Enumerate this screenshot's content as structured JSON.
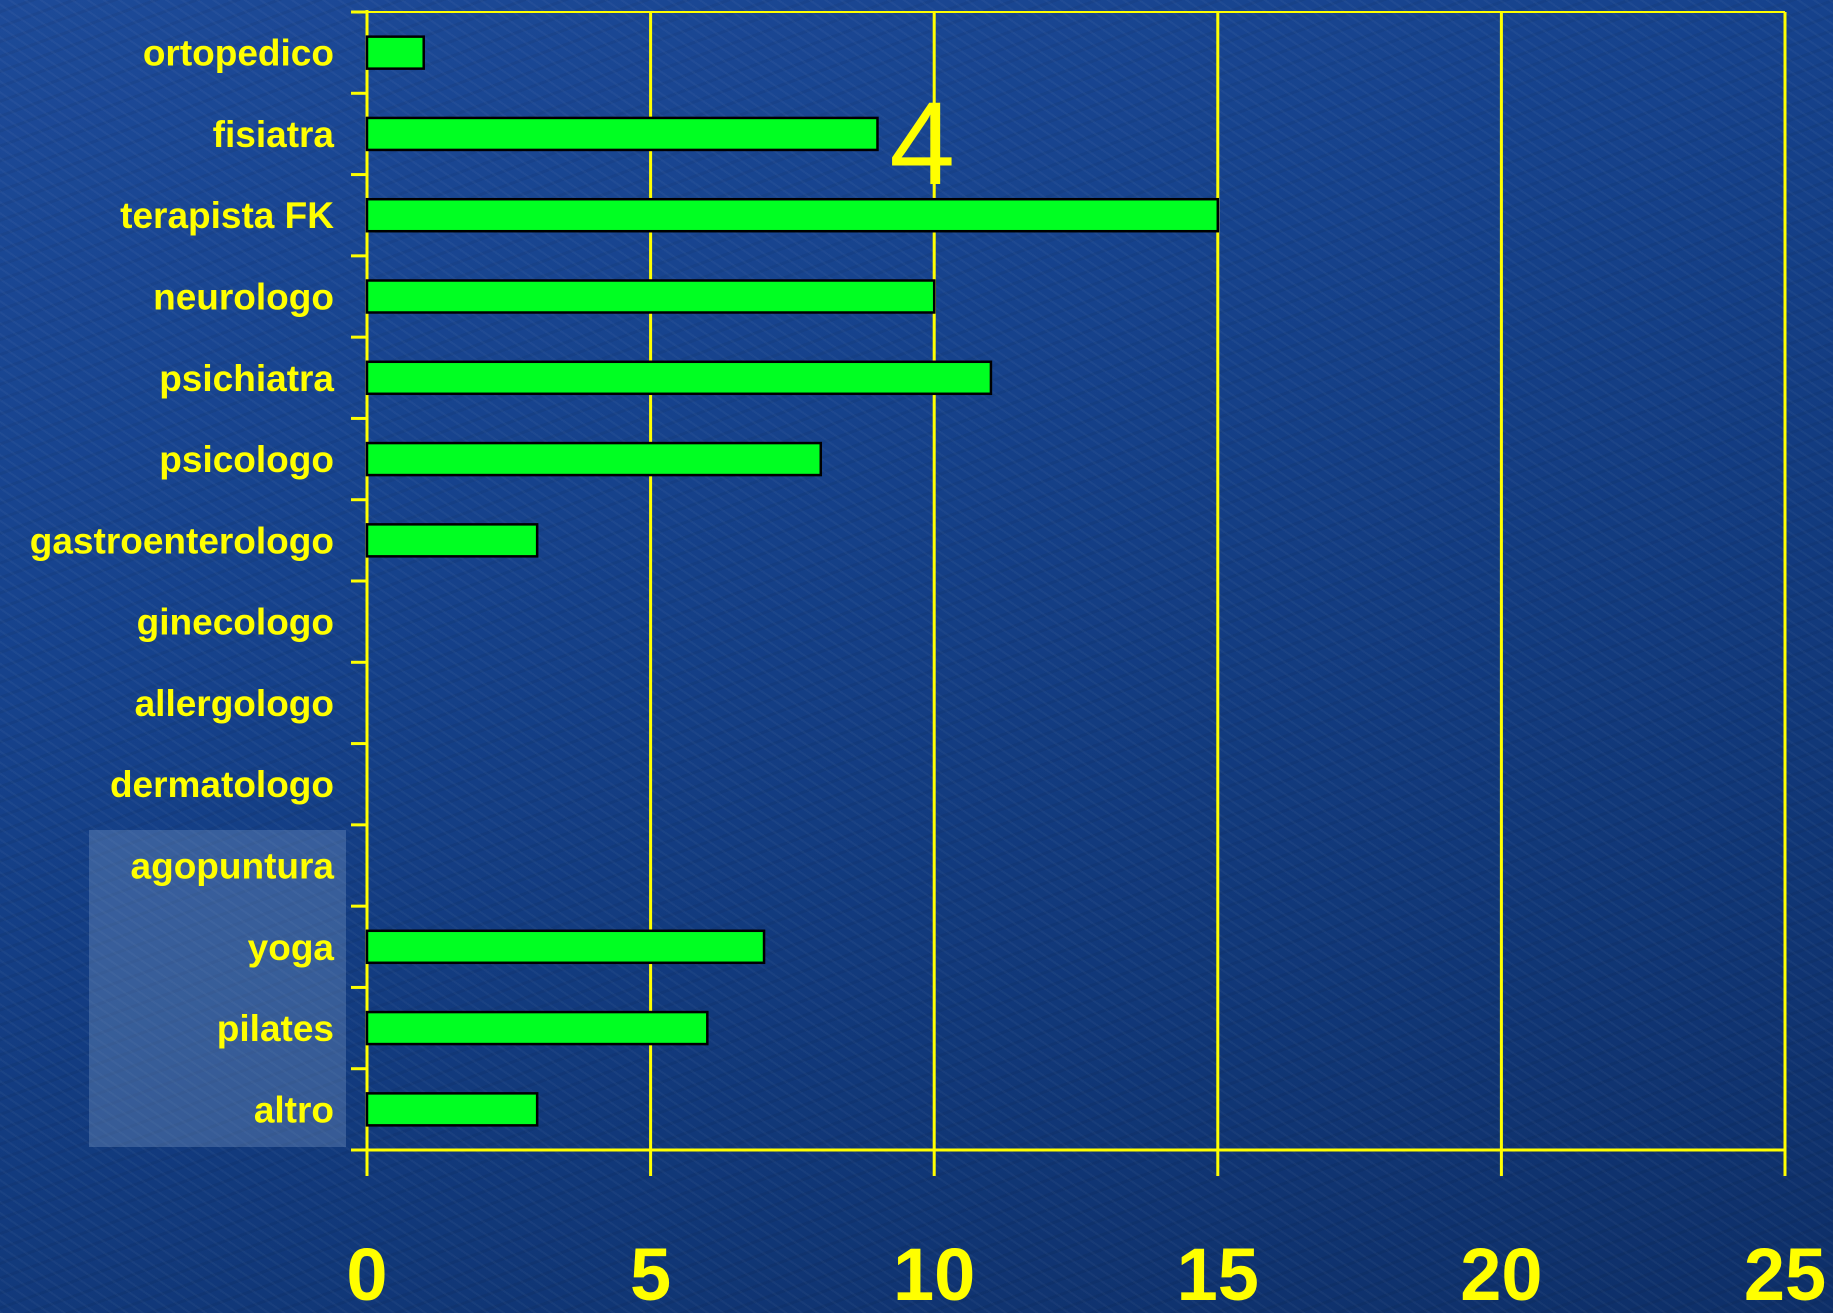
{
  "chart_data": {
    "type": "bar",
    "orientation": "horizontal",
    "categories": [
      "ortopedico",
      "fisiatra",
      "terapista FK",
      "neurologo",
      "psichiatra",
      "psicologo",
      "gastroenterologo",
      "ginecologo",
      "allergologo",
      "dermatologo",
      "agopuntura",
      "yoga",
      "pilates",
      "altro"
    ],
    "values": [
      1,
      9,
      15,
      10,
      11,
      8,
      3,
      0,
      0,
      0,
      0,
      7,
      6,
      3
    ],
    "xlim": [
      0,
      25
    ],
    "xticks": [
      0,
      5,
      10,
      15,
      20,
      25
    ],
    "grid": true,
    "legend": "none",
    "annotations": [
      {
        "text": "4",
        "x": 10,
        "category": "fisiatra"
      }
    ]
  },
  "colors": {
    "bar_fill": "#00ff22",
    "bar_stroke": "#000000",
    "grid": "#ffff00",
    "text": "#ffff00",
    "background": "#17438e"
  }
}
